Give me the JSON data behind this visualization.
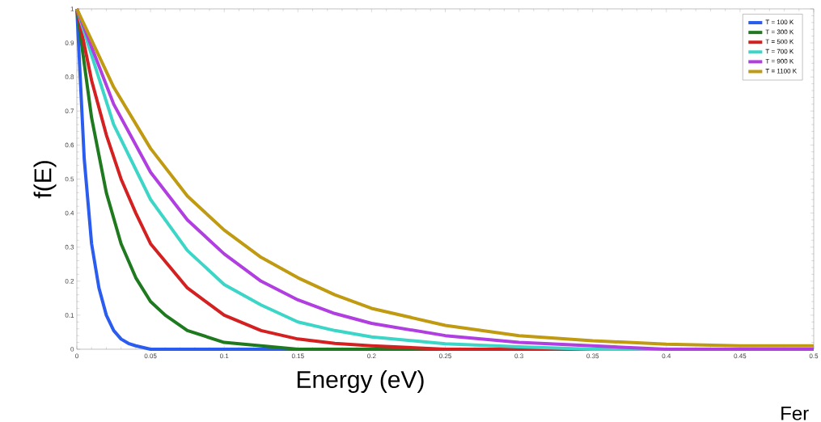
{
  "chart_data": {
    "type": "line",
    "xlabel": "Energy (eV)",
    "ylabel": "f(E)",
    "xlim": [
      0,
      0.5
    ],
    "ylim": [
      0,
      1
    ],
    "xticks": [
      0,
      0.05,
      0.1,
      0.15,
      0.2,
      0.25,
      0.3,
      0.35,
      0.4,
      0.45,
      0.5
    ],
    "yticks": [
      0,
      0.1,
      0.2,
      0.3,
      0.4,
      0.5,
      0.6,
      0.7,
      0.8,
      0.9,
      1
    ],
    "grid": false,
    "legend": "top right",
    "marker": "none",
    "line_style": "solid",
    "annotations": [
      "Fer"
    ],
    "series": [
      {
        "name": "T = 100 K",
        "color": "#2a5cf0",
        "x": [
          0,
          0.005,
          0.01,
          0.015,
          0.02,
          0.025,
          0.03,
          0.035,
          0.04,
          0.05,
          0.1,
          0.2
        ],
        "values": [
          1,
          0.56,
          0.31,
          0.18,
          0.1,
          0.055,
          0.03,
          0.017,
          0.01,
          0,
          0,
          0
        ]
      },
      {
        "name": "T = 300 K",
        "color": "#1f7a1f",
        "x": [
          0,
          0.01,
          0.02,
          0.03,
          0.04,
          0.05,
          0.06,
          0.075,
          0.1,
          0.125,
          0.15,
          0.2,
          0.3,
          0.4,
          0.5
        ],
        "values": [
          1,
          0.68,
          0.46,
          0.31,
          0.21,
          0.14,
          0.1,
          0.055,
          0.02,
          0.01,
          0,
          0,
          0,
          0,
          0
        ]
      },
      {
        "name": "T = 500 K",
        "color": "#d42020",
        "x": [
          0,
          0.01,
          0.02,
          0.03,
          0.04,
          0.05,
          0.075,
          0.1,
          0.125,
          0.15,
          0.175,
          0.2,
          0.25,
          0.3,
          0.4,
          0.5
        ],
        "values": [
          1,
          0.79,
          0.63,
          0.5,
          0.4,
          0.31,
          0.18,
          0.1,
          0.055,
          0.03,
          0.017,
          0.01,
          0,
          0,
          0,
          0
        ]
      },
      {
        "name": "T = 700 K",
        "color": "#3cd6c8",
        "x": [
          0,
          0.025,
          0.05,
          0.075,
          0.1,
          0.125,
          0.15,
          0.175,
          0.2,
          0.25,
          0.3,
          0.35,
          0.4,
          0.5
        ],
        "values": [
          1,
          0.66,
          0.44,
          0.29,
          0.19,
          0.13,
          0.08,
          0.055,
          0.036,
          0.016,
          0.007,
          0,
          0,
          0
        ]
      },
      {
        "name": "T = 900 K",
        "color": "#b03ee0",
        "x": [
          0,
          0.025,
          0.05,
          0.075,
          0.1,
          0.125,
          0.15,
          0.175,
          0.2,
          0.25,
          0.3,
          0.35,
          0.4,
          0.45,
          0.5
        ],
        "values": [
          1,
          0.72,
          0.52,
          0.38,
          0.28,
          0.2,
          0.145,
          0.105,
          0.076,
          0.04,
          0.02,
          0.01,
          0,
          0,
          0
        ]
      },
      {
        "name": "T = 1100 K",
        "color": "#c09a10",
        "x": [
          0,
          0.025,
          0.05,
          0.075,
          0.1,
          0.125,
          0.15,
          0.175,
          0.2,
          0.25,
          0.3,
          0.35,
          0.4,
          0.45,
          0.5
        ],
        "values": [
          1,
          0.77,
          0.59,
          0.45,
          0.35,
          0.27,
          0.21,
          0.16,
          0.12,
          0.07,
          0.04,
          0.025,
          0.015,
          0.01,
          0.01
        ]
      }
    ]
  }
}
